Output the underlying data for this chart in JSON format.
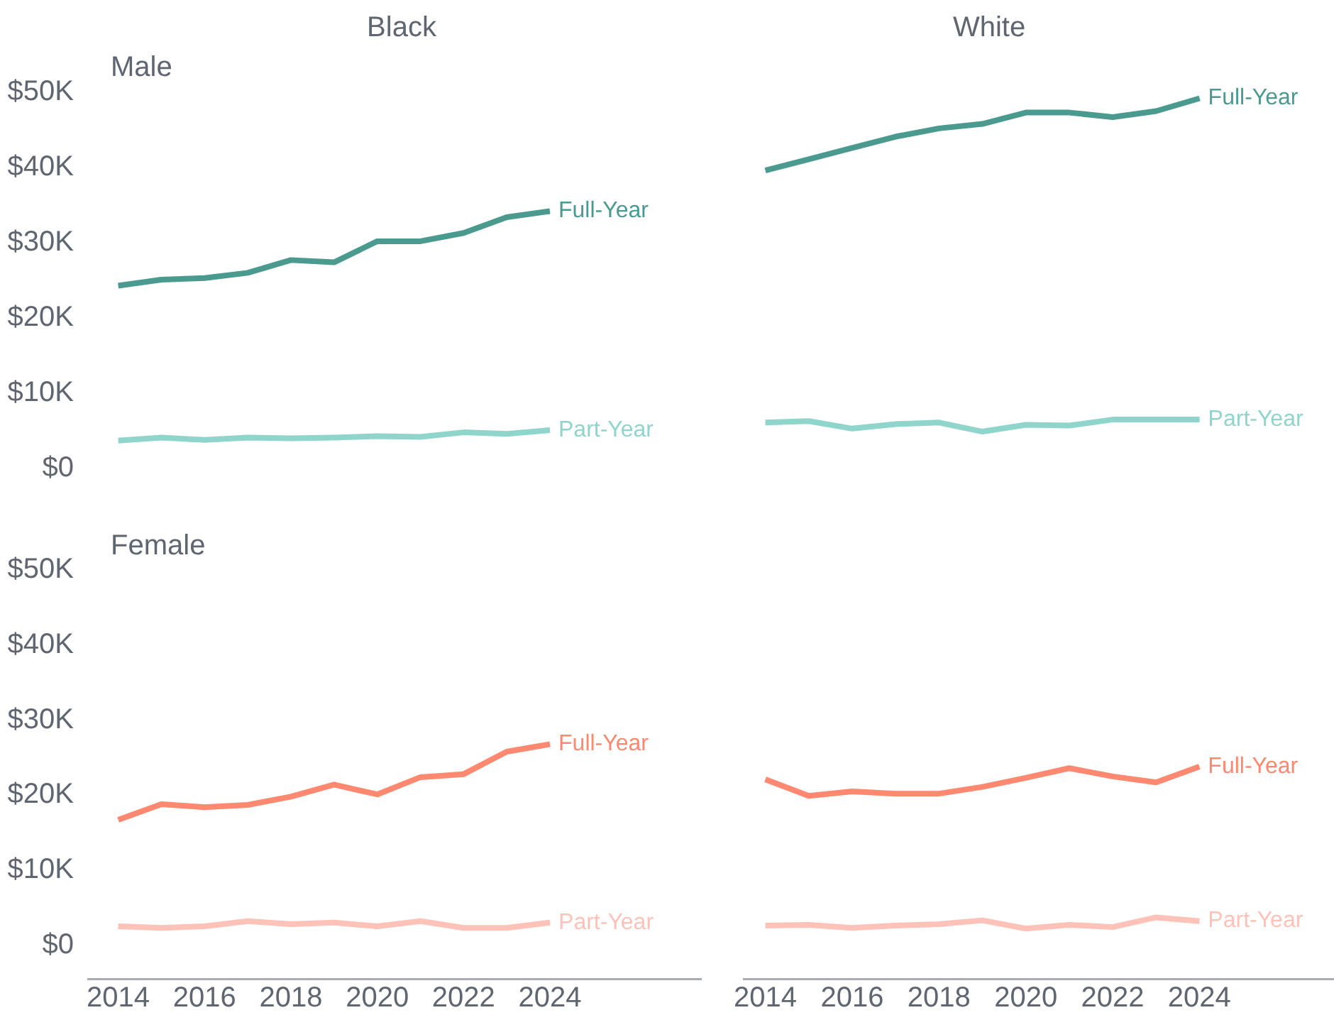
{
  "chart_data": [
    {
      "type": "line",
      "title": "Black",
      "subtitle": "Male",
      "x": [
        2014,
        2015,
        2016,
        2017,
        2018,
        2019,
        2020,
        2021,
        2022,
        2023,
        2024
      ],
      "xlim": [
        2014,
        2024
      ],
      "xticks": [
        2014,
        2016,
        2018,
        2020,
        2022,
        2024
      ],
      "ylim": [
        0,
        50000
      ],
      "yticks": [
        {
          "value": 0,
          "label": "$0"
        },
        {
          "value": 10000,
          "label": "$10K"
        },
        {
          "value": 20000,
          "label": "$20K"
        },
        {
          "value": 30000,
          "label": "$30K"
        },
        {
          "value": 40000,
          "label": "$40K"
        },
        {
          "value": 50000,
          "label": "$50K"
        }
      ],
      "tick_labels": "y",
      "grid": false,
      "legend": false,
      "marker": "none",
      "series": [
        {
          "name": "Full-Year",
          "color": "#4a9a8f",
          "values": [
            24300,
            25100,
            25300,
            26000,
            27700,
            27400,
            30200,
            30200,
            31300,
            33400,
            34200
          ]
        },
        {
          "name": "Part-Year",
          "color": "#8fd5cb",
          "values": [
            3700,
            4100,
            3800,
            4100,
            4000,
            4100,
            4300,
            4200,
            4800,
            4600,
            5100
          ]
        }
      ]
    },
    {
      "type": "line",
      "title": "White",
      "x": [
        2014,
        2015,
        2016,
        2017,
        2018,
        2019,
        2020,
        2021,
        2022,
        2023,
        2024
      ],
      "xlim": [
        2014,
        2024
      ],
      "xticks": [
        2014,
        2016,
        2018,
        2020,
        2022,
        2024
      ],
      "ylim": [
        0,
        50000
      ],
      "tick_labels": false,
      "grid": false,
      "legend": false,
      "marker": "none",
      "series": [
        {
          "name": "Full-Year",
          "color": "#4a9a8f",
          "values": [
            39600,
            41100,
            42600,
            44100,
            45200,
            45800,
            47300,
            47300,
            46700,
            47500,
            49200
          ]
        },
        {
          "name": "Part-Year",
          "color": "#8fd5cb",
          "values": [
            6100,
            6300,
            5300,
            5900,
            6100,
            4900,
            5800,
            5700,
            6500,
            6500,
            6500
          ]
        }
      ]
    },
    {
      "type": "line",
      "subtitle": "Female",
      "x": [
        2014,
        2015,
        2016,
        2017,
        2018,
        2019,
        2020,
        2021,
        2022,
        2023,
        2024
      ],
      "xlim": [
        2013.3,
        2027.5
      ],
      "xticks": [
        2014,
        2016,
        2018,
        2020,
        2022,
        2024
      ],
      "ylim": [
        -4500,
        50000
      ],
      "yticks": [
        {
          "value": 0,
          "label": "$0"
        },
        {
          "value": 10000,
          "label": "$10K"
        },
        {
          "value": 20000,
          "label": "$20K"
        },
        {
          "value": 30000,
          "label": "$30K"
        },
        {
          "value": 40000,
          "label": "$40K"
        },
        {
          "value": 50000,
          "label": "$50K"
        }
      ],
      "grid": false,
      "legend": false,
      "marker": "none",
      "series": [
        {
          "name": "Full-Year",
          "color": "#ff8870",
          "values": [
            16700,
            18800,
            18400,
            18700,
            19800,
            21400,
            20100,
            22400,
            22800,
            25800,
            26800
          ]
        },
        {
          "name": "Part-Year",
          "color": "#ffc2b8",
          "values": [
            2500,
            2300,
            2500,
            3200,
            2800,
            3000,
            2500,
            3200,
            2300,
            2300,
            3000
          ]
        }
      ]
    },
    {
      "type": "line",
      "x": [
        2014,
        2015,
        2016,
        2017,
        2018,
        2019,
        2020,
        2021,
        2022,
        2023,
        2024
      ],
      "xlim": [
        2013.5,
        2027.1
      ],
      "xticks": [
        2014,
        2016,
        2018,
        2020,
        2022,
        2024
      ],
      "ylim": [
        -4500,
        50000
      ],
      "tick_labels": "x",
      "grid": false,
      "legend": false,
      "marker": "none",
      "series": [
        {
          "name": "Full-Year",
          "color": "#ff8870",
          "values": [
            22100,
            19900,
            20500,
            20200,
            20200,
            21100,
            22300,
            23600,
            22500,
            21700,
            23800
          ]
        },
        {
          "name": "Part-Year",
          "color": "#ffc2b8",
          "values": [
            2600,
            2700,
            2300,
            2600,
            2800,
            3300,
            2200,
            2700,
            2400,
            3700,
            3200
          ]
        }
      ]
    }
  ]
}
